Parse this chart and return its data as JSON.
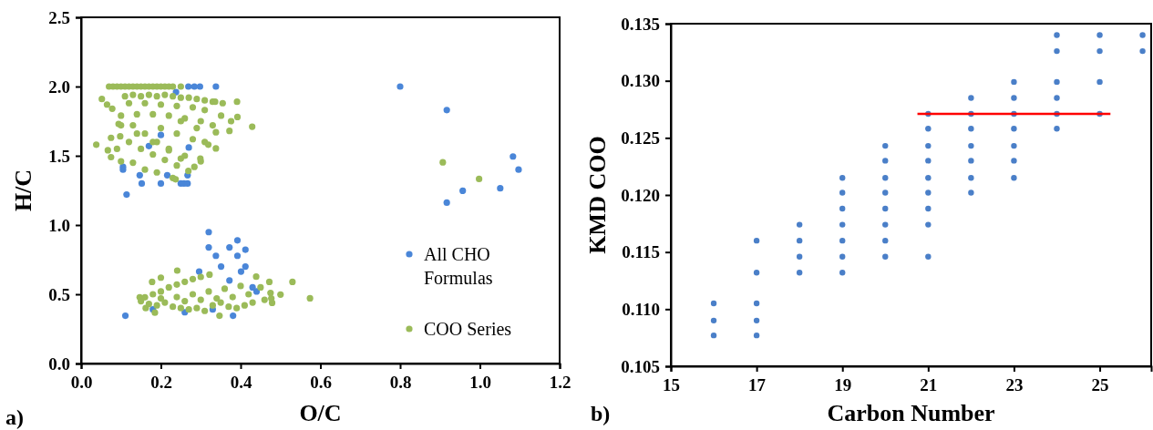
{
  "chart_data": [
    {
      "type": "scatter",
      "xlabel": "O/C",
      "ylabel": "H/C",
      "annotations": [
        "a)"
      ],
      "xlim": [
        0,
        1.2
      ],
      "ylim": [
        0,
        2.5
      ],
      "xticks": [
        {
          "value": 0,
          "label": "0.0"
        },
        0.2,
        0.4,
        0.6,
        0.8,
        {
          "value": 1,
          "label": "1.0"
        },
        1.2
      ],
      "yticks": [
        {
          "value": 0,
          "label": "0.0"
        },
        0.5,
        {
          "value": 1,
          "label": "1.0"
        },
        1.5,
        {
          "value": 2,
          "label": "2.0"
        },
        2.5
      ],
      "legend": "bottom right",
      "marker": "circle",
      "series": [
        {
          "name": "All CHO Formulas",
          "color": "#4a86d8",
          "x": [
            0.269,
            0.284,
            0.298,
            0.338,
            0.238,
            0.114,
            0.152,
            0.2,
            0.25,
            0.258,
            0.267,
            0.147,
            0.216,
            0.267,
            0.105,
            0.105,
            0.17,
            0.2,
            0.27,
            0.8,
            0.917,
            1.083,
            1.097,
            1.051,
            0.957,
            0.917,
            0.32,
            0.32,
            0.372,
            0.392,
            0.412,
            0.338,
            0.392,
            0.351,
            0.412,
            0.401,
            0.296,
            0.111,
            0.381,
            0.372,
            0.43,
            0.44,
            0.18,
            0.26,
            0.33
          ],
          "values": [
            2.0,
            2.0,
            2.0,
            2.0,
            1.96,
            1.22,
            1.3,
            1.3,
            1.3,
            1.3,
            1.3,
            1.36,
            1.36,
            1.36,
            1.4,
            1.42,
            1.57,
            1.65,
            1.56,
            2.0,
            1.83,
            1.495,
            1.4,
            1.265,
            1.247,
            1.162,
            0.949,
            0.838,
            0.838,
            0.889,
            0.822,
            0.778,
            0.778,
            0.7,
            0.7,
            0.664,
            0.664,
            0.345,
            0.345,
            0.6,
            0.55,
            0.52,
            0.39,
            0.37,
            0.39
          ]
        },
        {
          "name": "COO Series",
          "color": "#9bbb59",
          "x": [
            0.07,
            0.08,
            0.09,
            0.1,
            0.11,
            0.12,
            0.13,
            0.14,
            0.15,
            0.16,
            0.17,
            0.18,
            0.19,
            0.2,
            0.21,
            0.22,
            0.23,
            0.25,
            0.11,
            0.13,
            0.15,
            0.17,
            0.19,
            0.21,
            0.23,
            0.25,
            0.27,
            0.29,
            0.31,
            0.33,
            0.12,
            0.16,
            0.2,
            0.24,
            0.28,
            0.31,
            0.14,
            0.18,
            0.22,
            0.26,
            0.3,
            0.33,
            0.078,
            0.1,
            0.13,
            0.16,
            0.19,
            0.22,
            0.25,
            0.284,
            0.098,
            0.12,
            0.15,
            0.18,
            0.21,
            0.24,
            0.269,
            0.1,
            0.14,
            0.18,
            0.22,
            0.26,
            0.3,
            0.2,
            0.24,
            0.28,
            0.25,
            0.29,
            0.31,
            0.052,
            0.065,
            0.038,
            0.094,
            0.075,
            0.067,
            0.075,
            0.09,
            0.1,
            0.13,
            0.16,
            0.19,
            0.23,
            0.336,
            0.355,
            0.391,
            0.392,
            0.429,
            0.351,
            0.376,
            0.372,
            0.338,
            0.338,
            0.319,
            0.299,
            0.237,
            0.907,
            0.998,
            0.147,
            0.16,
            0.18,
            0.2,
            0.22,
            0.24,
            0.26,
            0.28,
            0.3,
            0.322,
            0.178,
            0.162,
            0.185,
            0.15,
            0.17,
            0.19,
            0.21,
            0.23,
            0.25,
            0.27,
            0.29,
            0.31,
            0.33,
            0.35,
            0.37,
            0.39,
            0.41,
            0.43,
            0.2,
            0.24,
            0.28,
            0.32,
            0.36,
            0.4,
            0.42,
            0.38,
            0.34,
            0.3,
            0.26,
            0.241,
            0.2,
            0.347,
            0.439,
            0.472,
            0.475,
            0.477,
            0.479,
            0.5,
            0.53,
            0.574,
            0.45,
            0.46
          ],
          "values": [
            2.0,
            2.0,
            2.0,
            2.0,
            2.0,
            2.0,
            2.0,
            2.0,
            2.0,
            2.0,
            2.0,
            2.0,
            2.0,
            2.0,
            2.0,
            2.0,
            2.0,
            2.0,
            1.93,
            1.94,
            1.93,
            1.94,
            1.93,
            1.94,
            1.93,
            1.92,
            1.92,
            1.91,
            1.9,
            1.89,
            1.88,
            1.88,
            1.87,
            1.86,
            1.85,
            1.83,
            1.8,
            1.8,
            1.79,
            1.77,
            1.75,
            1.72,
            1.84,
            1.79,
            1.72,
            1.66,
            1.6,
            1.54,
            1.48,
            1.42,
            1.64,
            1.6,
            1.55,
            1.51,
            1.47,
            1.43,
            1.39,
            1.72,
            1.66,
            1.6,
            1.55,
            1.5,
            1.46,
            1.7,
            1.66,
            1.62,
            1.75,
            1.7,
            1.6,
            1.91,
            1.87,
            1.58,
            1.73,
            1.63,
            1.54,
            1.49,
            1.55,
            1.46,
            1.45,
            1.4,
            1.38,
            1.34,
            1.89,
            1.88,
            1.89,
            1.78,
            1.71,
            1.79,
            1.75,
            1.68,
            1.67,
            1.553,
            1.58,
            1.48,
            1.33,
            1.453,
            1.333,
            0.478,
            0.478,
            0.5,
            0.52,
            0.55,
            0.57,
            0.59,
            0.61,
            0.625,
            0.642,
            0.589,
            0.4,
            0.367,
            0.45,
            0.43,
            0.42,
            0.44,
            0.41,
            0.4,
            0.39,
            0.4,
            0.38,
            0.42,
            0.44,
            0.41,
            0.4,
            0.42,
            0.44,
            0.47,
            0.48,
            0.5,
            0.52,
            0.54,
            0.56,
            0.5,
            0.48,
            0.47,
            0.46,
            0.45,
            0.671,
            0.62,
            0.345,
            0.627,
            0.589,
            0.51,
            0.47,
            0.438,
            0.498,
            0.589,
            0.471,
            0.55,
            0.46
          ]
        }
      ]
    },
    {
      "type": "scatter",
      "xlabel": "Carbon Number",
      "ylabel": "KMD COO",
      "annotations": [
        "b)"
      ],
      "xlim": [
        15,
        26.2
      ],
      "ylim": [
        0.105,
        0.135
      ],
      "xticks": [
        15,
        17,
        19,
        21,
        23,
        25
      ],
      "yticks": [
        0.105,
        {
          "value": 0.11,
          "label": "0.110"
        },
        0.115,
        {
          "value": 0.12,
          "label": "0.120"
        },
        0.125,
        {
          "value": 0.13,
          "label": "0.130"
        },
        0.135
      ],
      "marker": "circle",
      "series": [
        {
          "color": "#4a7fc8",
          "x": [
            16,
            16,
            16,
            17,
            17,
            17,
            17,
            17,
            18,
            18,
            18,
            18,
            19,
            19,
            19,
            19,
            19,
            19,
            19,
            20,
            20,
            20,
            20,
            20,
            20,
            20,
            20,
            21,
            21,
            21,
            21,
            21,
            21,
            21,
            21,
            21,
            22,
            22,
            22,
            22,
            22,
            22,
            22,
            23,
            23,
            23,
            23,
            23,
            23,
            23,
            24,
            24,
            24,
            24,
            24,
            24,
            25,
            25,
            25,
            25,
            26,
            26
          ],
          "values": [
            0.1105,
            0.109,
            0.1077,
            0.116,
            0.1132,
            0.1105,
            0.109,
            0.1077,
            0.1174,
            0.116,
            0.1146,
            0.1132,
            0.1215,
            0.1202,
            0.1188,
            0.1174,
            0.116,
            0.1146,
            0.1132,
            0.1243,
            0.123,
            0.1215,
            0.1202,
            0.1188,
            0.1174,
            0.116,
            0.1146,
            0.1271,
            0.1258,
            0.1243,
            0.123,
            0.1215,
            0.1202,
            0.1188,
            0.1174,
            0.1146,
            0.1285,
            0.1271,
            0.1258,
            0.1243,
            0.123,
            0.1215,
            0.1202,
            0.1299,
            0.1285,
            0.1271,
            0.1258,
            0.1243,
            0.123,
            0.1215,
            0.134,
            0.1326,
            0.1299,
            0.1285,
            0.1271,
            0.1258,
            0.134,
            0.1326,
            0.1299,
            0.1271,
            0.134,
            0.1326
          ]
        },
        {
          "type": "line",
          "marker": "none",
          "color": "#ff0000",
          "x": [
            20.75,
            25.25
          ],
          "values": [
            0.1271,
            0.1271
          ]
        }
      ]
    }
  ]
}
